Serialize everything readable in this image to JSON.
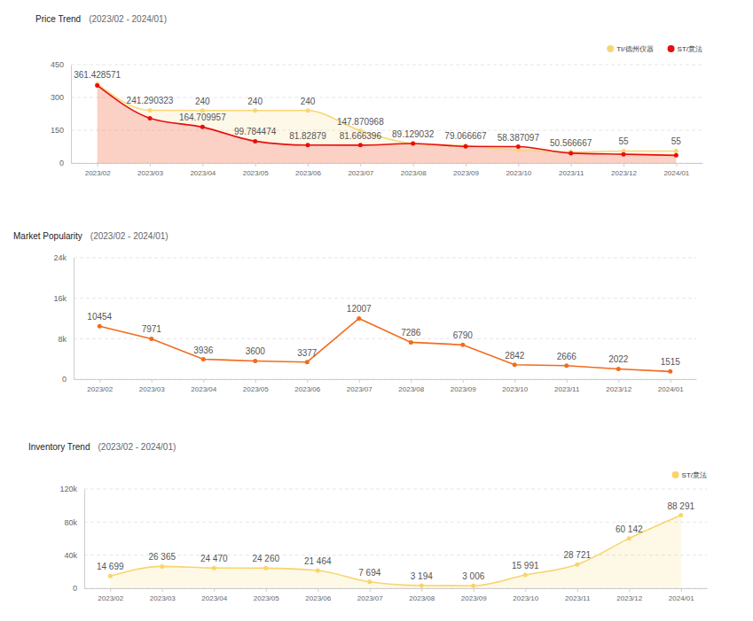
{
  "chart_data": [
    {
      "type": "area",
      "title": "Price Trend",
      "subtitle": "(2023/02 - 2024/01)",
      "categories": [
        "2023/02",
        "2023/03",
        "2023/04",
        "2023/05",
        "2023/06",
        "2023/07",
        "2023/08",
        "2023/09",
        "2023/10",
        "2023/11",
        "2023/12",
        "2024/01"
      ],
      "series": [
        {
          "name": "TI/德州仪器",
          "color": "#f8d676",
          "values": [
            361.428571,
            241.290323,
            240,
            240,
            240,
            147.870968,
            89.129032,
            79.066667,
            58.387097,
            50.566667,
            55,
            55
          ]
        },
        {
          "name": "ST/意法",
          "color": "#e60f0f",
          "values": [
            355,
            205,
            164.709957,
            99.784474,
            81.82879,
            81.666396,
            89,
            76,
            75,
            45,
            40,
            35
          ],
          "value_labels": [
            null,
            null,
            "164.709957",
            "99.784474",
            "81.82879",
            "81.666396",
            null,
            null,
            null,
            null,
            null,
            null
          ]
        }
      ],
      "ylim": [
        0,
        450
      ],
      "yticks": [
        0,
        150,
        300,
        450
      ],
      "grid": true,
      "legend": "top-right",
      "data_labels": true,
      "marker": "circle"
    },
    {
      "type": "line",
      "title": "Market Popularity",
      "subtitle": "(2023/02 - 2024/01)",
      "categories": [
        "2023/02",
        "2023/03",
        "2023/04",
        "2023/05",
        "2023/06",
        "2023/07",
        "2023/08",
        "2023/09",
        "2023/10",
        "2023/11",
        "2023/12",
        "2024/01"
      ],
      "values": [
        10454,
        7971,
        3936,
        3600,
        3377,
        12007,
        7286,
        6790,
        2842,
        2666,
        2022,
        1515
      ],
      "color": "#f26b1d",
      "ylim": [
        0,
        24000
      ],
      "yticks": [
        0,
        {
          "value": 8000,
          "label": "8k"
        },
        {
          "value": 16000,
          "label": "16k"
        },
        {
          "value": 24000,
          "label": "24k"
        }
      ],
      "grid": true,
      "data_labels": true,
      "marker": "circle"
    },
    {
      "type": "area",
      "title": "Inventory Trend",
      "subtitle": "(2023/02 - 2024/01)",
      "categories": [
        "2023/02",
        "2023/03",
        "2023/04",
        "2023/05",
        "2023/06",
        "2023/07",
        "2023/08",
        "2023/09",
        "2023/10",
        "2023/11",
        "2023/12",
        "2024/01"
      ],
      "series": [
        {
          "name": "ST/意法",
          "color": "#f9d46b",
          "values": [
            14699,
            26365,
            24470,
            24260,
            21464,
            7694,
            3194,
            3006,
            15991,
            28721,
            60142,
            88291
          ],
          "value_labels": [
            "14 699",
            "26 365",
            "24 470",
            "24 260",
            "21 464",
            "7 694",
            "3 194",
            "3 006",
            "15 991",
            "28 721",
            "60 142",
            "88 291"
          ]
        }
      ],
      "ylim": [
        0,
        120000
      ],
      "yticks": [
        0,
        {
          "value": 40000,
          "label": "40k"
        },
        {
          "value": 80000,
          "label": "80k"
        },
        {
          "value": 120000,
          "label": "120k"
        }
      ],
      "grid": true,
      "legend": "top-right",
      "data_labels": true,
      "marker": "circle"
    }
  ]
}
